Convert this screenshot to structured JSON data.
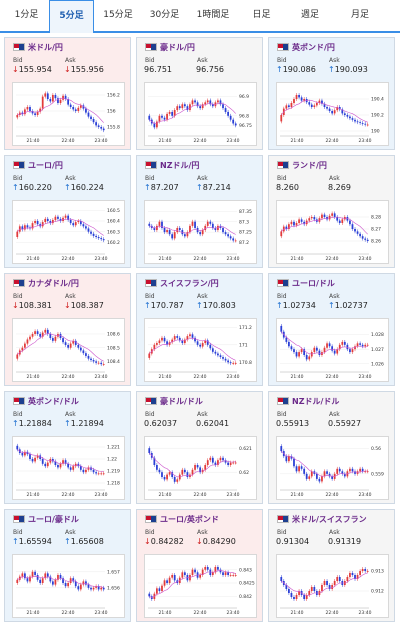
{
  "tabs": [
    {
      "label": "1分足",
      "active": false
    },
    {
      "label": "5分足",
      "active": true
    },
    {
      "label": "15分足",
      "active": false
    },
    {
      "label": "30分足",
      "active": false
    },
    {
      "label": "1時間足",
      "active": false
    },
    {
      "label": "日足",
      "active": false
    },
    {
      "label": "週足",
      "active": false
    },
    {
      "label": "月足",
      "active": false
    }
  ],
  "labels": {
    "bid": "Bid",
    "ask": "Ask"
  },
  "colors": {
    "up": "#1e6fd0",
    "down": "#d02020",
    "bull": "#e23b3b",
    "bear": "#2a3fd6",
    "ma": "#cc55cc"
  },
  "cards": [
    {
      "pair": "米ドル/円",
      "flag": "us-flag-icon",
      "dir": "down",
      "bid": "155.954",
      "ask": "155.956",
      "chart_data": {
        "type": "candlestick",
        "x_ticks": [
          "21:40",
          "22:40",
          "23:40"
        ],
        "y_ticks": [
          "156.2",
          "156",
          "155.8"
        ],
        "ylim": [
          155.7,
          156.3
        ],
        "closes": [
          155.95,
          155.98,
          155.96,
          156.02,
          156.05,
          156.0,
          155.97,
          155.95,
          155.99,
          156.03,
          156.18,
          156.22,
          156.15,
          156.12,
          156.2,
          156.16,
          156.1,
          156.14,
          156.19,
          156.15,
          156.08,
          156.05,
          156.02,
          156.0,
          156.04,
          156.07,
          156.03,
          155.98,
          155.93,
          155.9,
          155.86,
          155.82,
          155.8,
          155.78,
          155.76
        ]
      }
    },
    {
      "pair": "豪ドル/円",
      "flag": "au-flag-icon",
      "dir": "flat",
      "bid": "96.751",
      "ask": "96.756",
      "chart_data": {
        "type": "candlestick",
        "x_ticks": [
          "21:40",
          "22:40",
          "23:40"
        ],
        "y_ticks": [
          "96.9",
          "96.8",
          "96.75"
        ],
        "ylim": [
          96.7,
          96.95
        ],
        "closes": [
          96.78,
          96.76,
          96.74,
          96.77,
          96.8,
          96.79,
          96.78,
          96.81,
          96.82,
          96.8,
          96.83,
          96.85,
          96.84,
          96.86,
          96.85,
          96.83,
          96.86,
          96.88,
          96.87,
          96.85,
          96.84,
          96.86,
          96.87,
          96.88,
          96.86,
          96.85,
          96.87,
          96.88,
          96.86,
          96.84,
          96.82,
          96.8,
          96.78,
          96.76,
          96.75
        ]
      }
    },
    {
      "pair": "英ポンド/円",
      "flag": "gb-flag-icon",
      "dir": "up",
      "bid": "190.086",
      "ask": "190.093",
      "chart_data": {
        "type": "candlestick",
        "x_ticks": [
          "21:40",
          "22:40",
          "23:40"
        ],
        "y_ticks": [
          "190.4",
          "190.2",
          "190"
        ],
        "ylim": [
          189.95,
          190.55
        ],
        "closes": [
          190.2,
          190.28,
          190.32,
          190.3,
          190.35,
          190.4,
          190.45,
          190.42,
          190.38,
          190.4,
          190.36,
          190.33,
          190.3,
          190.32,
          190.35,
          190.38,
          190.34,
          190.3,
          190.28,
          190.25,
          190.22,
          190.26,
          190.3,
          190.27,
          190.22,
          190.2,
          190.18,
          190.16,
          190.14,
          190.12,
          190.11,
          190.1,
          190.09,
          190.08,
          190.08
        ]
      }
    },
    {
      "pair": "ユーロ/円",
      "flag": "eu-flag-icon",
      "dir": "up",
      "bid": "160.220",
      "ask": "160.224",
      "chart_data": {
        "type": "candlestick",
        "x_ticks": [
          "21:40",
          "22:40",
          "23:40"
        ],
        "y_ticks": [
          "160.5",
          "160.4",
          "160.3",
          "160.2"
        ],
        "ylim": [
          160.1,
          160.55
        ],
        "closes": [
          160.3,
          160.35,
          160.32,
          160.36,
          160.34,
          160.33,
          160.38,
          160.4,
          160.37,
          160.35,
          160.39,
          160.42,
          160.4,
          160.38,
          160.41,
          160.44,
          160.42,
          160.4,
          160.43,
          160.45,
          160.41,
          160.38,
          160.36,
          160.39,
          160.4,
          160.37,
          160.35,
          160.33,
          160.3,
          160.28,
          160.26,
          160.25,
          160.24,
          160.23,
          160.22
        ]
      }
    },
    {
      "pair": "NZドル/円",
      "flag": "nz-flag-icon",
      "dir": "up",
      "bid": "87.207",
      "ask": "87.214",
      "chart_data": {
        "type": "candlestick",
        "x_ticks": [
          "21:40",
          "22:40",
          "23:40"
        ],
        "y_ticks": [
          "87.35",
          "87.3",
          "87.25",
          "87.2"
        ],
        "ylim": [
          87.15,
          87.38
        ],
        "closes": [
          87.28,
          87.27,
          87.26,
          87.28,
          87.3,
          87.27,
          87.25,
          87.26,
          87.24,
          87.22,
          87.25,
          87.27,
          87.26,
          87.24,
          87.23,
          87.25,
          87.28,
          87.3,
          87.27,
          87.25,
          87.24,
          87.26,
          87.28,
          87.3,
          87.29,
          87.27,
          87.26,
          87.28,
          87.27,
          87.25,
          87.24,
          87.23,
          87.22,
          87.21,
          87.21
        ]
      }
    },
    {
      "pair": "ランド/円",
      "flag": "za-flag-icon",
      "dir": "flat",
      "bid": "8.260",
      "ask": "8.269",
      "chart_data": {
        "type": "candlestick",
        "x_ticks": [
          "21:40",
          "22:40",
          "23:40"
        ],
        "y_ticks": [
          "8.28",
          "8.27",
          "8.26"
        ],
        "ylim": [
          8.25,
          8.29
        ],
        "closes": [
          8.268,
          8.272,
          8.27,
          8.274,
          8.276,
          8.273,
          8.275,
          8.278,
          8.276,
          8.274,
          8.277,
          8.279,
          8.28,
          8.278,
          8.276,
          8.279,
          8.282,
          8.28,
          8.278,
          8.281,
          8.283,
          8.28,
          8.277,
          8.275,
          8.278,
          8.28,
          8.277,
          8.274,
          8.27,
          8.268,
          8.266,
          8.264,
          8.262,
          8.261,
          8.26
        ]
      }
    },
    {
      "pair": "カナダドル/円",
      "flag": "ca-flag-icon",
      "dir": "down",
      "bid": "108.381",
      "ask": "108.387",
      "chart_data": {
        "type": "candlestick",
        "x_ticks": [
          "21:40",
          "22:40",
          "23:40"
        ],
        "y_ticks": [
          "108.6",
          "108.5",
          "108.4"
        ],
        "ylim": [
          108.33,
          108.68
        ],
        "closes": [
          108.45,
          108.48,
          108.5,
          108.53,
          108.56,
          108.58,
          108.6,
          108.62,
          108.6,
          108.58,
          108.61,
          108.63,
          108.6,
          108.57,
          108.55,
          108.58,
          108.6,
          108.57,
          108.54,
          108.52,
          108.5,
          108.53,
          108.55,
          108.52,
          108.5,
          108.48,
          108.46,
          108.44,
          108.42,
          108.41,
          108.4,
          108.39,
          108.39,
          108.38,
          108.38
        ]
      }
    },
    {
      "pair": "スイスフラン/円",
      "flag": "ch-flag-icon",
      "dir": "up",
      "bid": "170.787",
      "ask": "170.803",
      "chart_data": {
        "type": "candlestick",
        "x_ticks": [
          "21:40",
          "22:40",
          "23:40"
        ],
        "y_ticks": [
          "171.2",
          "171",
          "170.8"
        ],
        "ylim": [
          170.7,
          171.25
        ],
        "closes": [
          170.9,
          170.95,
          171.0,
          171.02,
          171.05,
          171.08,
          171.04,
          171.0,
          171.03,
          171.06,
          171.1,
          171.08,
          171.05,
          171.02,
          171.06,
          171.1,
          171.12,
          171.08,
          171.04,
          171.0,
          170.98,
          171.02,
          171.05,
          171.0,
          170.96,
          170.92,
          170.9,
          170.88,
          170.86,
          170.84,
          170.82,
          170.8,
          170.79,
          170.79,
          170.79
        ]
      }
    },
    {
      "pair": "ユーロ/ドル",
      "flag": "eu-flag-icon",
      "dir": "up",
      "bid": "1.02734",
      "ask": "1.02737",
      "chart_data": {
        "type": "candlestick",
        "x_ticks": [
          "21:40",
          "22:40",
          "23:40"
        ],
        "y_ticks": [
          "1.028",
          "1.027",
          "1.026"
        ],
        "ylim": [
          1.0255,
          1.0288
        ],
        "closes": [
          1.0282,
          1.0278,
          1.0275,
          1.0272,
          1.027,
          1.0268,
          1.0265,
          1.0268,
          1.027,
          1.0266,
          1.0263,
          1.0265,
          1.0268,
          1.0271,
          1.0269,
          1.0266,
          1.0268,
          1.0271,
          1.0274,
          1.0272,
          1.0269,
          1.0267,
          1.027,
          1.0273,
          1.0275,
          1.0273,
          1.027,
          1.0268,
          1.027,
          1.0272,
          1.0274,
          1.0273,
          1.0272,
          1.0273,
          1.0273
        ]
      }
    },
    {
      "pair": "英ポンド/ドル",
      "flag": "gb-flag-icon",
      "dir": "up",
      "bid": "1.21884",
      "ask": "1.21894",
      "chart_data": {
        "type": "candlestick",
        "x_ticks": [
          "21:40",
          "22:40",
          "23:40"
        ],
        "y_ticks": [
          "1.221",
          "1.22",
          "1.219",
          "1.218"
        ],
        "ylim": [
          1.2175,
          1.2215
        ],
        "closes": [
          1.2208,
          1.2205,
          1.2203,
          1.2206,
          1.2204,
          1.22,
          1.2198,
          1.2201,
          1.2203,
          1.22,
          1.2196,
          1.2194,
          1.2197,
          1.22,
          1.2198,
          1.2195,
          1.2193,
          1.2196,
          1.2199,
          1.2196,
          1.2193,
          1.2191,
          1.2194,
          1.2196,
          1.2194,
          1.2191,
          1.2189,
          1.2191,
          1.2193,
          1.2191,
          1.2189,
          1.2188,
          1.2188,
          1.2188,
          1.2188
        ]
      }
    },
    {
      "pair": "豪ドル/ドル",
      "flag": "au-flag-icon",
      "dir": "flat",
      "bid": "0.62037",
      "ask": "0.62041",
      "chart_data": {
        "type": "candlestick",
        "x_ticks": [
          "21:40",
          "22:40",
          "23:40"
        ],
        "y_ticks": [
          "0.621",
          "0.62"
        ],
        "ylim": [
          0.6193,
          0.6213
        ],
        "closes": [
          0.6208,
          0.6206,
          0.6203,
          0.6201,
          0.62,
          0.6198,
          0.6197,
          0.6199,
          0.62,
          0.6198,
          0.6196,
          0.6197,
          0.6199,
          0.6201,
          0.62,
          0.6198,
          0.6199,
          0.6201,
          0.6203,
          0.6202,
          0.62,
          0.6201,
          0.6203,
          0.6205,
          0.6206,
          0.6204,
          0.6203,
          0.6205,
          0.6206,
          0.6205,
          0.6204,
          0.6203,
          0.6204,
          0.6204,
          0.6204
        ]
      }
    },
    {
      "pair": "NZドル/ドル",
      "flag": "nz-flag-icon",
      "dir": "flat",
      "bid": "0.55913",
      "ask": "0.55927",
      "chart_data": {
        "type": "candlestick",
        "x_ticks": [
          "21:40",
          "22:40",
          "23:40"
        ],
        "y_ticks": [
          "0.56",
          "0.559"
        ],
        "ylim": [
          0.5584,
          0.5603
        ],
        "closes": [
          0.5599,
          0.5597,
          0.5595,
          0.5597,
          0.5596,
          0.5593,
          0.5591,
          0.5593,
          0.5592,
          0.559,
          0.5588,
          0.5589,
          0.5591,
          0.559,
          0.5588,
          0.5587,
          0.5589,
          0.5591,
          0.559,
          0.5589,
          0.5588,
          0.559,
          0.5592,
          0.5591,
          0.559,
          0.5589,
          0.5591,
          0.5592,
          0.5591,
          0.559,
          0.5591,
          0.5592,
          0.5591,
          0.5591,
          0.5591
        ]
      }
    },
    {
      "pair": "ユーロ/豪ドル",
      "flag": "eu-flag-icon",
      "dir": "up",
      "bid": "1.65594",
      "ask": "1.65608",
      "chart_data": {
        "type": "candlestick",
        "x_ticks": [
          "21:40",
          "22:40",
          "23:40"
        ],
        "y_ticks": [
          "1.657",
          "1.656"
        ],
        "ylim": [
          1.6548,
          1.6578
        ],
        "closes": [
          1.6565,
          1.6567,
          1.6569,
          1.6566,
          1.6564,
          1.6567,
          1.657,
          1.6568,
          1.6565,
          1.6563,
          1.6566,
          1.6569,
          1.6567,
          1.6564,
          1.6562,
          1.6565,
          1.6568,
          1.6566,
          1.6563,
          1.6561,
          1.6563,
          1.6566,
          1.6564,
          1.6561,
          1.6559,
          1.6562,
          1.6564,
          1.6562,
          1.656,
          1.6559,
          1.656,
          1.6561,
          1.6559,
          1.656,
          1.6559
        ]
      }
    },
    {
      "pair": "ユーロ/英ポンド",
      "flag": "eu-flag-icon",
      "dir": "down",
      "bid": "0.84282",
      "ask": "0.84290",
      "chart_data": {
        "type": "candlestick",
        "x_ticks": [
          "21:40",
          "22:40",
          "23:40"
        ],
        "y_ticks": [
          "0.843",
          "0.8425",
          "0.842"
        ],
        "ylim": [
          0.8416,
          0.8434
        ],
        "closes": [
          0.842,
          0.8419,
          0.8421,
          0.8423,
          0.8422,
          0.8424,
          0.8426,
          0.8425,
          0.8427,
          0.8428,
          0.8426,
          0.8425,
          0.8427,
          0.8429,
          0.8428,
          0.8426,
          0.8428,
          0.843,
          0.8429,
          0.8427,
          0.8428,
          0.843,
          0.8431,
          0.843,
          0.8428,
          0.8429,
          0.8431,
          0.843,
          0.8429,
          0.8428,
          0.8429,
          0.8428,
          0.8428,
          0.8428,
          0.8428
        ]
      }
    },
    {
      "pair": "米ドル/スイスフラン",
      "flag": "us-flag-icon",
      "dir": "flat",
      "bid": "0.91304",
      "ask": "0.91319",
      "chart_data": {
        "type": "candlestick",
        "x_ticks": [
          "21:40",
          "22:40",
          "23:40"
        ],
        "y_ticks": [
          "0.913",
          "0.912"
        ],
        "ylim": [
          0.9112,
          0.9136
        ],
        "closes": [
          0.9125,
          0.9123,
          0.9121,
          0.9119,
          0.9117,
          0.9116,
          0.9118,
          0.912,
          0.9118,
          0.9116,
          0.9118,
          0.912,
          0.9122,
          0.912,
          0.9118,
          0.912,
          0.9123,
          0.9125,
          0.9123,
          0.9121,
          0.9123,
          0.9125,
          0.9127,
          0.9125,
          0.9123,
          0.9125,
          0.9127,
          0.9129,
          0.9128,
          0.9126,
          0.9128,
          0.913,
          0.9131,
          0.913,
          0.913
        ]
      }
    }
  ]
}
